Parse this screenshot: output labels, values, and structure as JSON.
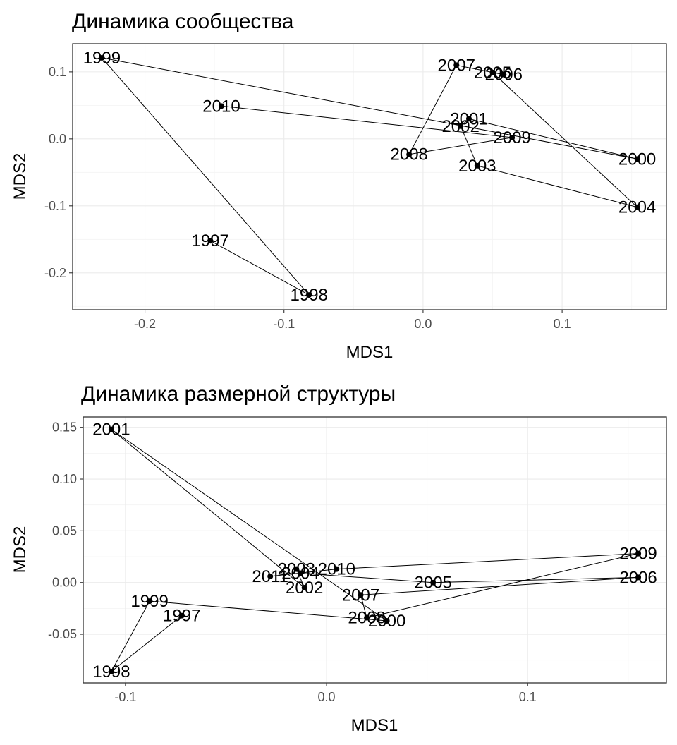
{
  "chart_data": [
    {
      "type": "scatter",
      "title": "Динамика сообщества",
      "xlabel": "MDS1",
      "ylabel": "MDS2",
      "xlim": [
        -0.252,
        0.175
      ],
      "ylim": [
        -0.255,
        0.142
      ],
      "x_ticks": [
        -0.2,
        -0.1,
        0.0,
        0.1
      ],
      "x_tick_labels": [
        "-0.2",
        "-0.1",
        "0.0",
        "0.1"
      ],
      "y_ticks": [
        -0.2,
        -0.1,
        0.0,
        0.1
      ],
      "y_tick_labels": [
        "-0.2",
        "-0.1",
        "0.0",
        "0.1"
      ],
      "grid": true,
      "connected_in_order": true,
      "points": [
        {
          "label": "1997",
          "x": -0.153,
          "y": -0.152
        },
        {
          "label": "1998",
          "x": -0.082,
          "y": -0.233
        },
        {
          "label": "1999",
          "x": -0.231,
          "y": 0.121
        },
        {
          "label": "2000",
          "x": 0.154,
          "y": -0.03
        },
        {
          "label": "2001",
          "x": 0.033,
          "y": 0.03
        },
        {
          "label": "2002",
          "x": 0.027,
          "y": 0.019
        },
        {
          "label": "2003",
          "x": 0.039,
          "y": -0.04
        },
        {
          "label": "2004",
          "x": 0.154,
          "y": -0.102
        },
        {
          "label": "2005",
          "x": 0.05,
          "y": 0.099
        },
        {
          "label": "2006",
          "x": 0.058,
          "y": 0.096
        },
        {
          "label": "2007",
          "x": 0.024,
          "y": 0.11
        },
        {
          "label": "2008",
          "x": -0.01,
          "y": -0.023
        },
        {
          "label": "2009",
          "x": 0.064,
          "y": 0.002
        },
        {
          "label": "2010",
          "x": -0.145,
          "y": 0.049
        }
      ]
    },
    {
      "type": "scatter",
      "title": "Динамика размерной структуры",
      "xlabel": "MDS1",
      "ylabel": "MDS2",
      "xlim": [
        -0.121,
        0.169
      ],
      "ylim": [
        -0.097,
        0.16
      ],
      "x_ticks": [
        -0.1,
        0.0,
        0.1
      ],
      "x_tick_labels": [
        "-0.1",
        "0.0",
        "0.1"
      ],
      "y_ticks": [
        -0.05,
        0.0,
        0.05,
        0.1,
        0.15
      ],
      "y_tick_labels": [
        "-0.05",
        "0.00",
        "0.05",
        "0.10",
        "0.15"
      ],
      "grid": true,
      "connected_in_order": true,
      "points": [
        {
          "label": "1997",
          "x": -0.072,
          "y": -0.032
        },
        {
          "label": "1998",
          "x": -0.107,
          "y": -0.086
        },
        {
          "label": "1999",
          "x": -0.088,
          "y": -0.018
        },
        {
          "label": "2000",
          "x": 0.03,
          "y": -0.037
        },
        {
          "label": "2001",
          "x": -0.107,
          "y": 0.148
        },
        {
          "label": "2002",
          "x": -0.011,
          "y": -0.005
        },
        {
          "label": "2003",
          "x": -0.015,
          "y": 0.013
        },
        {
          "label": "2004",
          "x": -0.013,
          "y": 0.009
        },
        {
          "label": "2005",
          "x": 0.053,
          "y": 0.0
        },
        {
          "label": "2006",
          "x": 0.155,
          "y": 0.005
        },
        {
          "label": "2007",
          "x": 0.017,
          "y": -0.012
        },
        {
          "label": "2008",
          "x": 0.02,
          "y": -0.034
        },
        {
          "label": "2009",
          "x": 0.155,
          "y": 0.028
        },
        {
          "label": "2010",
          "x": 0.005,
          "y": 0.013
        },
        {
          "label": "2011",
          "x": -0.028,
          "y": 0.006
        }
      ]
    }
  ]
}
